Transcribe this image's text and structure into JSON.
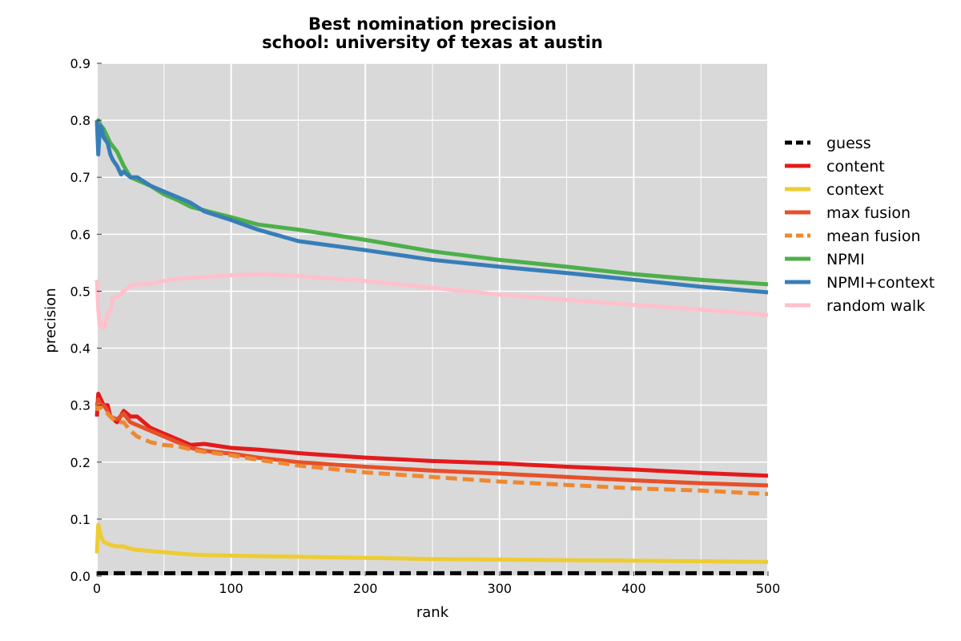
{
  "chart_data": {
    "type": "line",
    "title": "Best nomination precision",
    "subtitle": "school: university of texas at austin",
    "xlabel": "rank",
    "ylabel": "precision",
    "xlim": [
      0,
      500
    ],
    "ylim": [
      0.0,
      0.9
    ],
    "xticks": [
      "0",
      "100",
      "200",
      "300",
      "400",
      "500"
    ],
    "yticks": [
      "0.0",
      "0.1",
      "0.2",
      "0.3",
      "0.4",
      "0.5",
      "0.6",
      "0.7",
      "0.8",
      "0.9"
    ],
    "grid": true,
    "legend_position": "right, outside plot",
    "background_color": "#d9d9d9",
    "series": [
      {
        "name": "guess",
        "color": "#000000",
        "dashed": true,
        "x": [
          0,
          500
        ],
        "y": [
          0.005,
          0.005
        ]
      },
      {
        "name": "content",
        "color": "#e41a1c",
        "dashed": false,
        "x": [
          0,
          1,
          3,
          5,
          8,
          10,
          15,
          20,
          25,
          30,
          40,
          50,
          60,
          70,
          80,
          100,
          120,
          140,
          160,
          200,
          250,
          300,
          350,
          400,
          450,
          500
        ],
        "y": [
          0.28,
          0.32,
          0.31,
          0.3,
          0.3,
          0.28,
          0.27,
          0.29,
          0.28,
          0.28,
          0.26,
          0.25,
          0.24,
          0.23,
          0.232,
          0.225,
          0.222,
          0.218,
          0.214,
          0.208,
          0.202,
          0.198,
          0.192,
          0.187,
          0.181,
          0.176
        ]
      },
      {
        "name": "context",
        "color": "#eecc33",
        "dashed": false,
        "x": [
          0,
          1,
          3,
          5,
          8,
          10,
          15,
          20,
          25,
          30,
          40,
          50,
          60,
          70,
          80,
          100,
          120,
          150,
          200,
          250,
          300,
          350,
          400,
          450,
          500
        ],
        "y": [
          0.04,
          0.09,
          0.07,
          0.06,
          0.057,
          0.055,
          0.052,
          0.052,
          0.048,
          0.046,
          0.044,
          0.042,
          0.04,
          0.038,
          0.037,
          0.036,
          0.035,
          0.034,
          0.032,
          0.03,
          0.029,
          0.028,
          0.027,
          0.026,
          0.025
        ]
      },
      {
        "name": "max fusion",
        "color": "#e6502a",
        "dashed": false,
        "x": [
          0,
          1,
          3,
          5,
          8,
          10,
          15,
          20,
          25,
          30,
          40,
          50,
          60,
          70,
          80,
          100,
          120,
          150,
          200,
          250,
          300,
          350,
          400,
          450,
          500
        ],
        "y": [
          0.3,
          0.31,
          0.3,
          0.3,
          0.29,
          0.28,
          0.275,
          0.285,
          0.27,
          0.265,
          0.255,
          0.245,
          0.235,
          0.225,
          0.22,
          0.215,
          0.208,
          0.2,
          0.192,
          0.185,
          0.18,
          0.174,
          0.168,
          0.163,
          0.159
        ]
      },
      {
        "name": "mean fusion",
        "color": "#ee8833",
        "dashed": true,
        "x": [
          0,
          1,
          3,
          5,
          8,
          10,
          15,
          20,
          25,
          30,
          40,
          50,
          60,
          70,
          80,
          100,
          120,
          150,
          200,
          250,
          300,
          350,
          400,
          450,
          500
        ],
        "y": [
          0.29,
          0.3,
          0.295,
          0.29,
          0.285,
          0.28,
          0.27,
          0.27,
          0.255,
          0.245,
          0.235,
          0.23,
          0.228,
          0.222,
          0.218,
          0.212,
          0.204,
          0.194,
          0.182,
          0.174,
          0.166,
          0.16,
          0.154,
          0.15,
          0.144
        ]
      },
      {
        "name": "NPMI",
        "color": "#4daf4a",
        "dashed": false,
        "x": [
          0,
          1,
          3,
          5,
          8,
          10,
          15,
          20,
          25,
          30,
          40,
          50,
          60,
          70,
          80,
          100,
          120,
          150,
          200,
          250,
          300,
          350,
          400,
          450,
          500
        ],
        "y": [
          0.79,
          0.8,
          0.79,
          0.785,
          0.77,
          0.76,
          0.745,
          0.72,
          0.7,
          0.695,
          0.685,
          0.67,
          0.66,
          0.648,
          0.642,
          0.63,
          0.617,
          0.608,
          0.59,
          0.57,
          0.555,
          0.543,
          0.53,
          0.52,
          0.512
        ]
      },
      {
        "name": "NPMI+context",
        "color": "#377eb8",
        "dashed": false,
        "x": [
          0,
          1,
          2,
          3,
          5,
          8,
          10,
          12,
          15,
          18,
          20,
          25,
          30,
          40,
          50,
          60,
          70,
          80,
          100,
          120,
          150,
          200,
          250,
          300,
          350,
          400,
          450,
          500
        ],
        "y": [
          0.8,
          0.74,
          0.78,
          0.79,
          0.77,
          0.76,
          0.74,
          0.73,
          0.72,
          0.705,
          0.71,
          0.7,
          0.7,
          0.685,
          0.675,
          0.665,
          0.655,
          0.64,
          0.625,
          0.608,
          0.588,
          0.572,
          0.555,
          0.543,
          0.532,
          0.52,
          0.508,
          0.498
        ]
      },
      {
        "name": "random walk",
        "color": "#ffc0cb",
        "dashed": false,
        "x": [
          0,
          1,
          2,
          3,
          4,
          5,
          6,
          8,
          10,
          12,
          15,
          20,
          25,
          30,
          40,
          50,
          60,
          80,
          100,
          120,
          140,
          160,
          200,
          250,
          300,
          350,
          400,
          450,
          500
        ],
        "y": [
          0.52,
          0.47,
          0.44,
          0.445,
          0.44,
          0.435,
          0.44,
          0.46,
          0.465,
          0.49,
          0.49,
          0.5,
          0.51,
          0.512,
          0.513,
          0.518,
          0.522,
          0.525,
          0.528,
          0.53,
          0.528,
          0.525,
          0.518,
          0.506,
          0.494,
          0.485,
          0.476,
          0.468,
          0.458
        ]
      }
    ]
  }
}
